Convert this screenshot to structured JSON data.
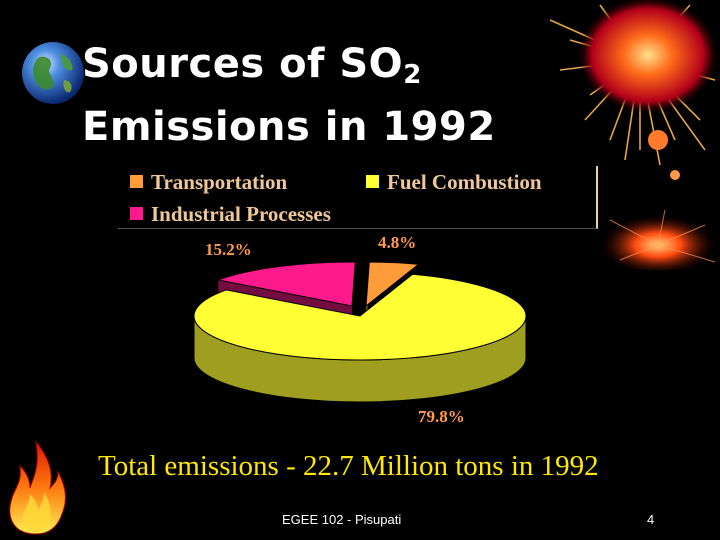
{
  "slide": {
    "title_line1": "Sources of SO",
    "title_sub": "2",
    "title_line2": "Emissions in 1992",
    "total_text": "Total emissions -  22.7 Million tons in 1992",
    "footer": "EGEE 102 - Pisupati",
    "page_number": "4"
  },
  "chart_data": {
    "type": "pie",
    "title": "",
    "categories": [
      "Transportation",
      "Fuel Combustion",
      "Industrial Processes"
    ],
    "values": [
      4.8,
      79.8,
      15.2
    ],
    "labels": [
      "4.8%",
      "79.8%",
      "15.2%"
    ],
    "colors": [
      "#ff9c3a",
      "#ffff33",
      "#ff1a8c"
    ],
    "legend_position": "top",
    "three_d": true
  },
  "colors": {
    "background": "#000000",
    "title": "#ffffff",
    "total_text": "#ffe900",
    "legend_text": "#f0c898",
    "percent_text": "#ff9a4a"
  },
  "icons": [
    "globe-icon",
    "flame-icon",
    "fireworks-icon"
  ]
}
